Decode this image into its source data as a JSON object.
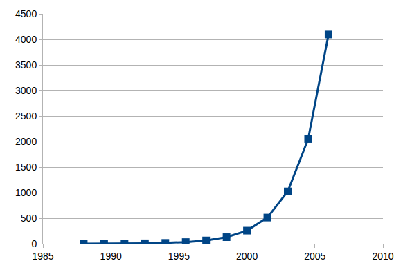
{
  "chart_data": {
    "type": "line",
    "x": [
      1988,
      1989.5,
      1991,
      1992.5,
      1994,
      1995.5,
      1997,
      1998.5,
      2000,
      2001.5,
      2003,
      2004.5,
      2006
    ],
    "values": [
      1,
      2,
      4,
      8,
      16,
      32,
      64,
      128,
      256,
      512,
      1024,
      2048,
      4096
    ],
    "color": "#004586",
    "marker": "square",
    "xlim": [
      1985,
      2010
    ],
    "xticks": [
      1985,
      1990,
      1995,
      2000,
      2005,
      2010
    ],
    "ylim": [
      0,
      4500
    ],
    "yticks": [
      0,
      500,
      1000,
      1500,
      2000,
      2500,
      3000,
      3500,
      4000,
      4500
    ],
    "grid": true
  }
}
